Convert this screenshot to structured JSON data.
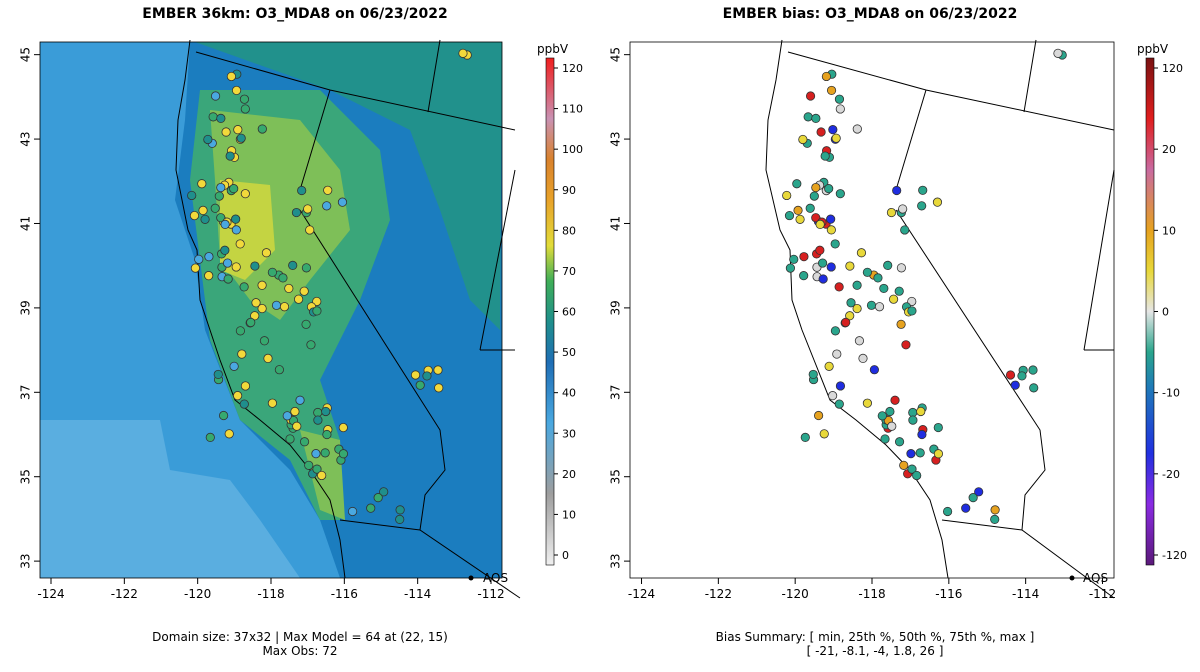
{
  "left_panel": {
    "title": "EMBER 36km: O3_MDA8 on 06/23/2022",
    "caption_line1": "Domain size: 37x32 | Max Model = 64 at (22, 15)",
    "caption_line2": "Max Obs: 72",
    "colorbar": {
      "unit": "ppbV",
      "ticks": [
        "0",
        "10",
        "20",
        "30",
        "40",
        "50",
        "60",
        "70",
        "80",
        "90",
        "100",
        "110",
        "120"
      ],
      "range": [
        -5,
        122
      ]
    }
  },
  "right_panel": {
    "title": "EMBER bias: O3_MDA8 on 06/23/2022",
    "caption_line1": "Bias Summary: [ min, 25th %, 50th %, 75th %, max ]",
    "caption_line2": "[ -21,   -8.1,   -4,   1.8,   26 ]",
    "colorbar": {
      "unit": "ppbV",
      "ticks": [
        "-120",
        "-20",
        "-10",
        "0",
        "10",
        "20",
        "120"
      ]
    }
  },
  "axes": {
    "x_ticks": [
      "-124",
      "-122",
      "-120",
      "-118",
      "-116",
      "-114",
      "-112"
    ],
    "y_ticks": [
      "33",
      "35",
      "37",
      "39",
      "41",
      "43",
      "45"
    ],
    "lon_range": [
      -124.3,
      -111.7
    ],
    "lat_range": [
      32.6,
      45.3
    ]
  },
  "station_label": "AQS",
  "colors": {
    "ocean_model": "#3a9cd8",
    "low_model": "#1b7dbf",
    "mid_model": "#2aa58c",
    "high_model": "#a9cf49",
    "peak_model": "#e8d83a",
    "obs_high": "#f2d93b",
    "obs_mid": "#36a96f",
    "bias_neg_strong": "#1f2de0",
    "bias_neg": "#2aa58c",
    "bias_zero": "#d9d9d9",
    "bias_pos": "#e6a21f",
    "bias_pos_strong": "#d62020"
  }
}
